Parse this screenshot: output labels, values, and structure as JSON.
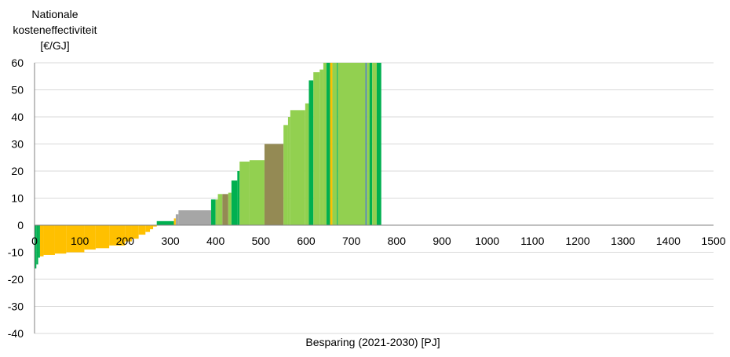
{
  "colors": {
    "orange": "#ffc000",
    "dark_green": "#00b050",
    "light_green": "#92d050",
    "grey": "#a6a6a6",
    "olive": "#948a54",
    "blue": "#4f81bd",
    "grid": "#d9d9d9",
    "axis": "#808080"
  },
  "chart_data": {
    "type": "bar",
    "subtype": "cost-supply curve (variable-width bars)",
    "ylabel_lines": [
      "Nationale",
      "kosteneffectiviteit",
      "[€/GJ]"
    ],
    "xlabel": "Besparing (2021-2030) [PJ]",
    "xlim": [
      0,
      1500
    ],
    "ylim": [
      -40,
      60
    ],
    "x_ticks": [
      0,
      100,
      200,
      300,
      400,
      500,
      600,
      700,
      800,
      900,
      1000,
      1100,
      1200,
      1300,
      1400,
      1500
    ],
    "y_ticks": [
      60,
      50,
      40,
      30,
      20,
      10,
      0,
      -10,
      -20,
      -30,
      -40
    ],
    "grid": "horizontal",
    "legend": "none",
    "segments": [
      {
        "x0": 0,
        "x1": 4,
        "y": -16,
        "color": "dark_green"
      },
      {
        "x0": 4,
        "x1": 8,
        "y": -14.5,
        "color": "dark_green"
      },
      {
        "x0": 8,
        "x1": 12,
        "y": -12,
        "color": "dark_green"
      },
      {
        "x0": 12,
        "x1": 20,
        "y": -11.5,
        "color": "orange"
      },
      {
        "x0": 20,
        "x1": 45,
        "y": -11,
        "color": "orange"
      },
      {
        "x0": 45,
        "x1": 70,
        "y": -10.5,
        "color": "orange"
      },
      {
        "x0": 70,
        "x1": 110,
        "y": -10,
        "color": "orange"
      },
      {
        "x0": 110,
        "x1": 135,
        "y": -9,
        "color": "orange"
      },
      {
        "x0": 135,
        "x1": 165,
        "y": -8.5,
        "color": "orange"
      },
      {
        "x0": 165,
        "x1": 200,
        "y": -7.5,
        "color": "orange"
      },
      {
        "x0": 200,
        "x1": 215,
        "y": -6,
        "color": "orange"
      },
      {
        "x0": 215,
        "x1": 230,
        "y": -5,
        "color": "orange"
      },
      {
        "x0": 230,
        "x1": 245,
        "y": -3.5,
        "color": "orange"
      },
      {
        "x0": 245,
        "x1": 255,
        "y": -2.5,
        "color": "orange"
      },
      {
        "x0": 255,
        "x1": 262,
        "y": -1.5,
        "color": "orange"
      },
      {
        "x0": 262,
        "x1": 270,
        "y": -0.5,
        "color": "orange"
      },
      {
        "x0": 270,
        "x1": 308,
        "y": 1.5,
        "color": "dark_green"
      },
      {
        "x0": 308,
        "x1": 312,
        "y": 2.5,
        "color": "orange"
      },
      {
        "x0": 312,
        "x1": 318,
        "y": 4,
        "color": "grey"
      },
      {
        "x0": 318,
        "x1": 390,
        "y": 5.5,
        "color": "grey"
      },
      {
        "x0": 390,
        "x1": 400,
        "y": 9.5,
        "color": "dark_green"
      },
      {
        "x0": 400,
        "x1": 405,
        "y": 9.5,
        "color": "light_green"
      },
      {
        "x0": 405,
        "x1": 415,
        "y": 11.5,
        "color": "light_green"
      },
      {
        "x0": 415,
        "x1": 428,
        "y": 11.5,
        "color": "olive"
      },
      {
        "x0": 428,
        "x1": 435,
        "y": 12,
        "color": "light_green"
      },
      {
        "x0": 435,
        "x1": 448,
        "y": 16.5,
        "color": "dark_green"
      },
      {
        "x0": 448,
        "x1": 453,
        "y": 20,
        "color": "dark_green"
      },
      {
        "x0": 453,
        "x1": 475,
        "y": 23.5,
        "color": "light_green"
      },
      {
        "x0": 475,
        "x1": 508,
        "y": 24,
        "color": "light_green"
      },
      {
        "x0": 508,
        "x1": 550,
        "y": 30,
        "color": "olive"
      },
      {
        "x0": 550,
        "x1": 560,
        "y": 37,
        "color": "light_green"
      },
      {
        "x0": 560,
        "x1": 565,
        "y": 40,
        "color": "light_green"
      },
      {
        "x0": 565,
        "x1": 598,
        "y": 42.5,
        "color": "light_green"
      },
      {
        "x0": 598,
        "x1": 606,
        "y": 45,
        "color": "light_green"
      },
      {
        "x0": 606,
        "x1": 616,
        "y": 53.5,
        "color": "dark_green"
      },
      {
        "x0": 616,
        "x1": 630,
        "y": 56.5,
        "color": "light_green"
      },
      {
        "x0": 630,
        "x1": 638,
        "y": 57.5,
        "color": "light_green"
      },
      {
        "x0": 638,
        "x1": 645,
        "y": 60,
        "color": "light_green"
      },
      {
        "x0": 645,
        "x1": 653,
        "y": 60,
        "color": "dark_green"
      },
      {
        "x0": 653,
        "x1": 658,
        "y": 60,
        "color": "orange"
      },
      {
        "x0": 658,
        "x1": 668,
        "y": 60,
        "color": "light_green"
      },
      {
        "x0": 668,
        "x1": 670,
        "y": 60,
        "color": "dark_green"
      },
      {
        "x0": 670,
        "x1": 731,
        "y": 60,
        "color": "light_green"
      },
      {
        "x0": 731,
        "x1": 734,
        "y": 60,
        "color": "blue"
      },
      {
        "x0": 734,
        "x1": 740,
        "y": 60,
        "color": "light_green"
      },
      {
        "x0": 740,
        "x1": 746,
        "y": 60,
        "color": "dark_green"
      },
      {
        "x0": 746,
        "x1": 756,
        "y": 60,
        "color": "light_green"
      },
      {
        "x0": 756,
        "x1": 766,
        "y": 60,
        "color": "dark_green"
      }
    ]
  }
}
